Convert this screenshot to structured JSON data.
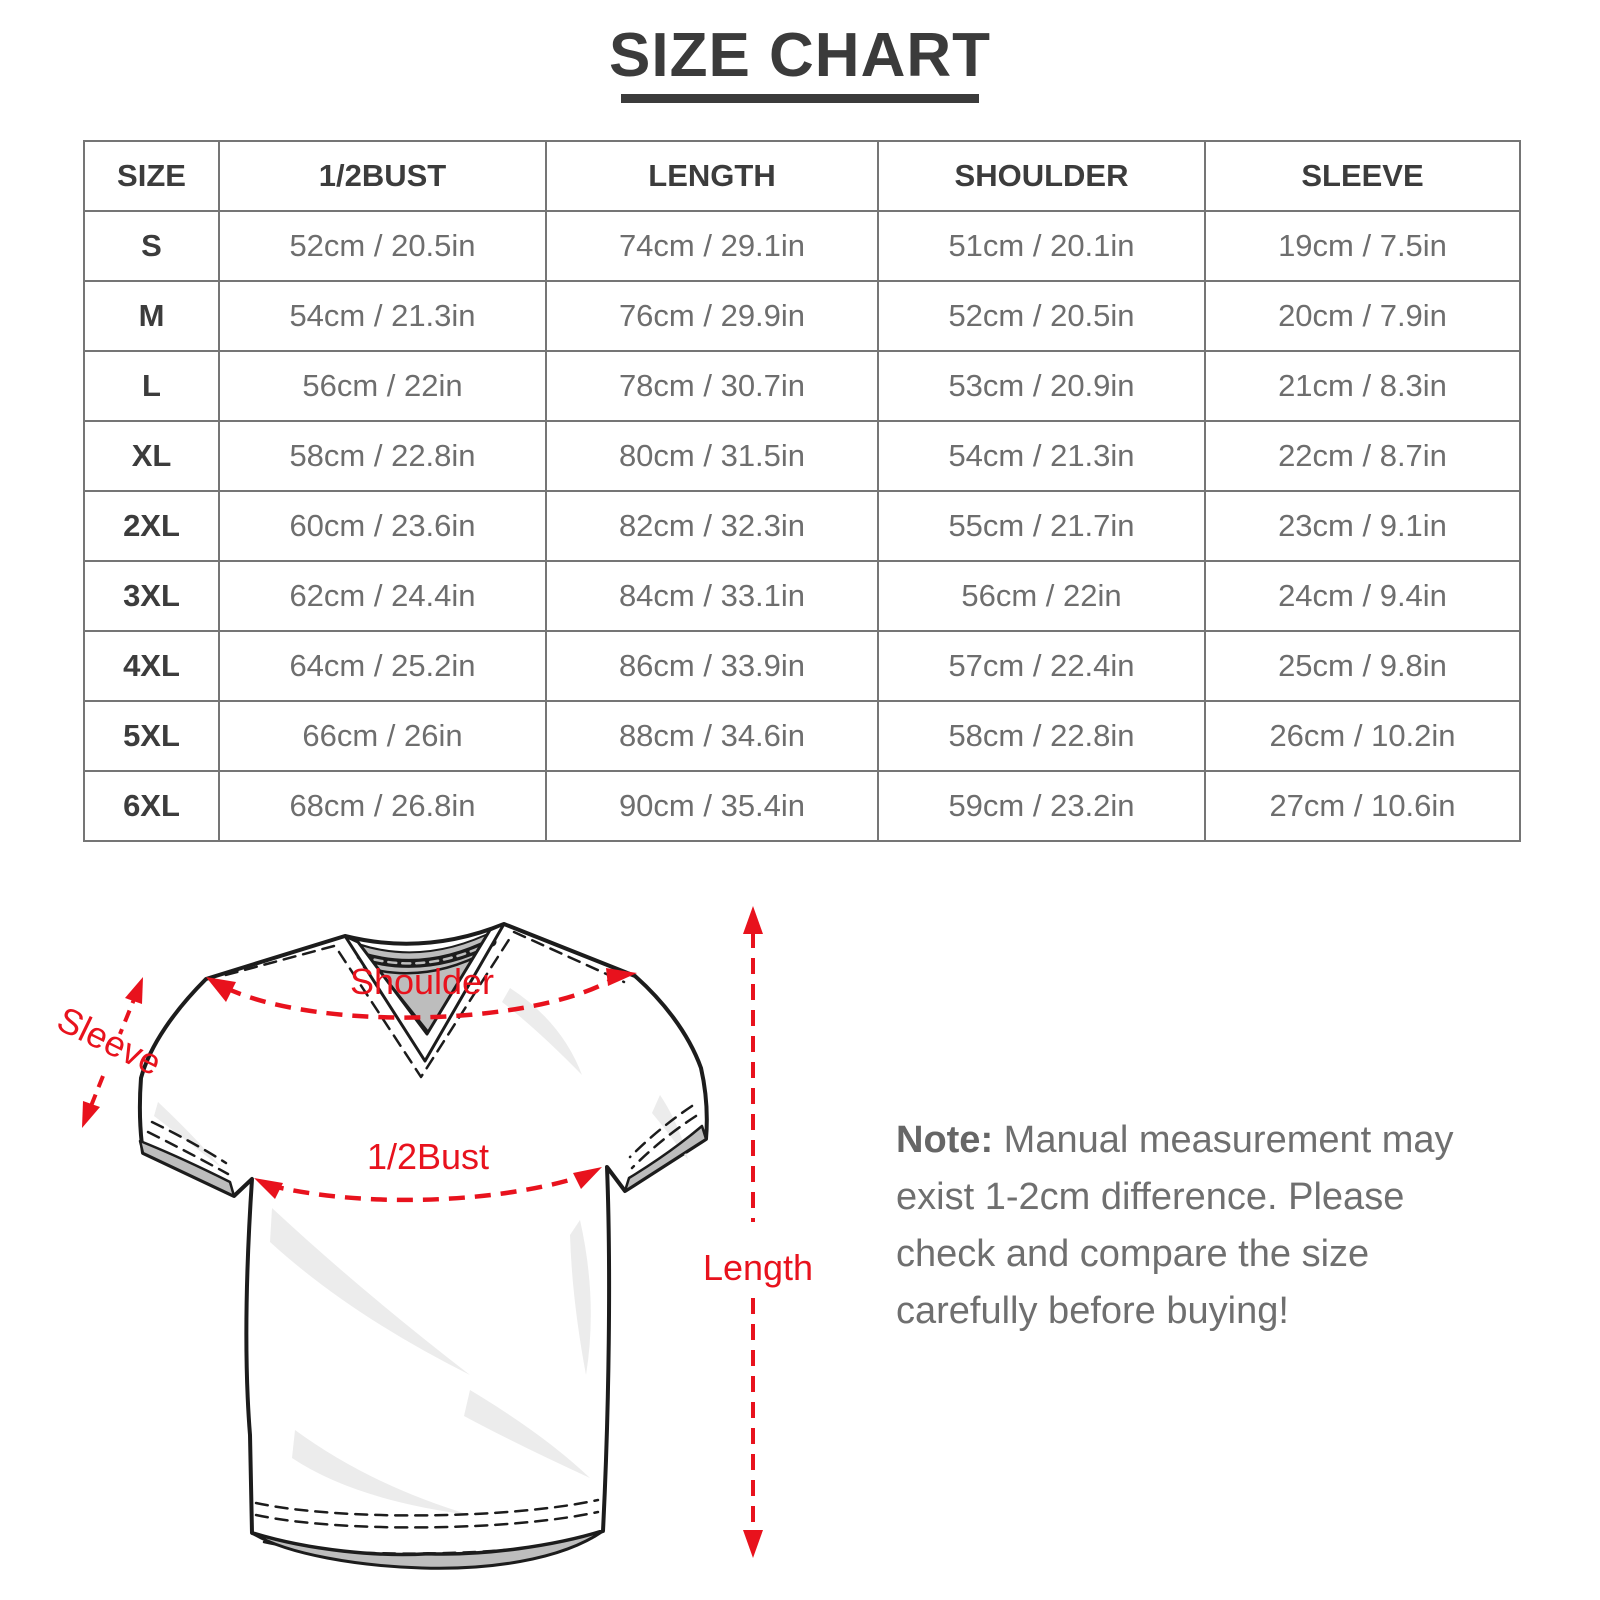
{
  "title": "SIZE CHART",
  "table": {
    "headers": [
      "SIZE",
      "1/2BUST",
      "LENGTH",
      "SHOULDER",
      "SLEEVE"
    ],
    "rows": [
      [
        "S",
        "52cm / 20.5in",
        "74cm / 29.1in",
        "51cm / 20.1in",
        "19cm / 7.5in"
      ],
      [
        "M",
        "54cm / 21.3in",
        "76cm / 29.9in",
        "52cm / 20.5in",
        "20cm / 7.9in"
      ],
      [
        "L",
        "56cm / 22in",
        "78cm / 30.7in",
        "53cm / 20.9in",
        "21cm / 8.3in"
      ],
      [
        "XL",
        "58cm / 22.8in",
        "80cm / 31.5in",
        "54cm / 21.3in",
        "22cm / 8.7in"
      ],
      [
        "2XL",
        "60cm / 23.6in",
        "82cm / 32.3in",
        "55cm / 21.7in",
        "23cm / 9.1in"
      ],
      [
        "3XL",
        "62cm / 24.4in",
        "84cm / 33.1in",
        "56cm / 22in",
        "24cm / 9.4in"
      ],
      [
        "4XL",
        "64cm / 25.2in",
        "86cm / 33.9in",
        "57cm / 22.4in",
        "25cm / 9.8in"
      ],
      [
        "5XL",
        "66cm / 26in",
        "88cm / 34.6in",
        "58cm / 22.8in",
        "26cm / 10.2in"
      ],
      [
        "6XL",
        "68cm / 26.8in",
        "90cm / 35.4in",
        "59cm / 23.2in",
        "27cm / 10.6in"
      ]
    ]
  },
  "diagram": {
    "shoulder_label": "Shoulder",
    "bust_label": "1/2Bust",
    "sleeve_label": "Sleeve",
    "length_label": "Length",
    "accent_color": "#e8121d"
  },
  "note": {
    "label": "Note:",
    "text": " Manual measurement may exist 1-2cm difference. Please check and compare the size carefully before buying!"
  }
}
